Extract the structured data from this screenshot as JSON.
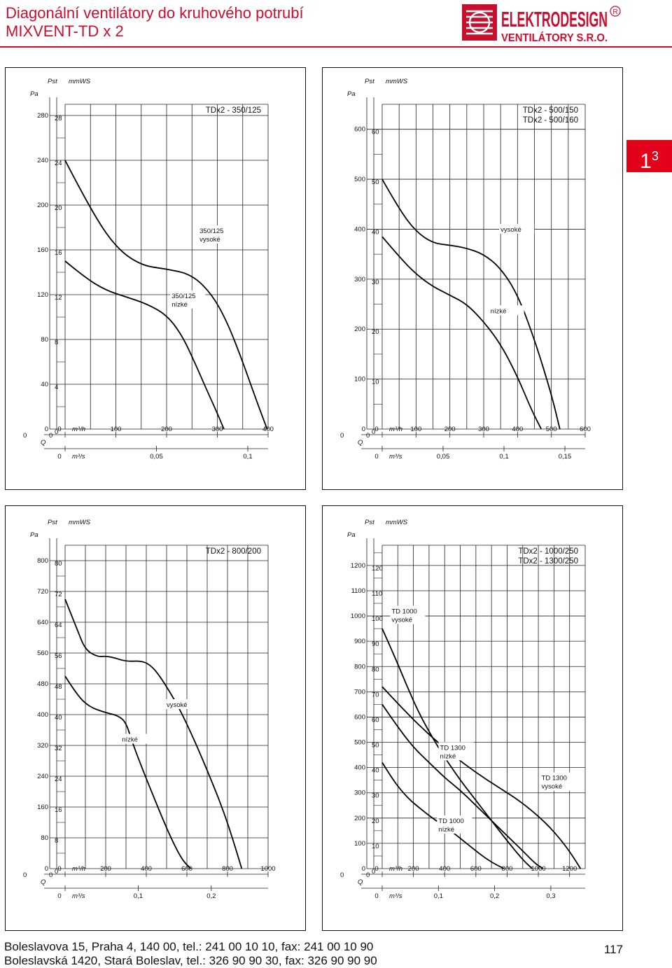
{
  "header": {
    "title_line1": "Diagonální ventilátory do kruhového potrubí",
    "title_line2": "MIXVENT-TD x 2",
    "logo_main": "ELEKTRODESIGN",
    "logo_sub": "VENTILÁTORY S.R.O.",
    "logo_mark": "R"
  },
  "tab": {
    "base": "1",
    "sup": "3"
  },
  "footer": {
    "line1": "Boleslavova 15, Praha 4, 140 00, tel.: 241 00 10 10, fax: 241 00 10 90",
    "line2": "Boleslavská 1420, Stará Boleslav, tel.: 326 90 90 30, fax: 326 90 90 90",
    "page_number": "117"
  },
  "chart_data": [
    {
      "type": "line",
      "title": "TDx2 - 350/125",
      "ylabel_main": "Pst",
      "ylabel_pa": "Pa",
      "ylabel_mmws": "mmWS",
      "xlabel_q": "Q",
      "xunit_h": "m³/h",
      "xunit_s": "m³/s",
      "x_ticks_h": [
        0,
        100,
        200,
        300,
        400
      ],
      "x_ticks_s": [
        "0",
        "0,05",
        "0,1"
      ],
      "x_ticks_s_vals": [
        0,
        0.05,
        0.1
      ],
      "xlim": [
        0,
        400
      ],
      "y_ticks_pa": [
        0,
        40,
        80,
        120,
        160,
        200,
        240,
        280
      ],
      "ylim": [
        0,
        290
      ],
      "series": [
        {
          "name": "350/125 vysoké",
          "x": [
            0,
            50,
            100,
            150,
            200,
            250,
            290,
            320,
            350,
            375,
            398
          ],
          "y": [
            240,
            196,
            162,
            146,
            143,
            138,
            120,
            95,
            60,
            28,
            0
          ]
        },
        {
          "name": "350/125 nízké",
          "x": [
            0,
            40,
            80,
            120,
            160,
            200,
            230,
            255,
            280,
            300,
            313
          ],
          "y": [
            150,
            135,
            124,
            118,
            112,
            102,
            84,
            60,
            34,
            14,
            0
          ]
        }
      ]
    },
    {
      "type": "line",
      "title": "TDx2 - 500/150\nTDx2 - 500/160",
      "ylabel_main": "Pst",
      "ylabel_pa": "Pa",
      "ylabel_mmws": "mmWS",
      "xlabel_q": "Q",
      "xunit_h": "m³/h",
      "xunit_s": "m³/s",
      "x_ticks_h": [
        0,
        100,
        200,
        300,
        400,
        500,
        600
      ],
      "x_ticks_s": [
        "0",
        "0,05",
        "0,1",
        "0,15"
      ],
      "x_ticks_s_vals": [
        0,
        0.05,
        0.1,
        0.15
      ],
      "xlim": [
        0,
        600
      ],
      "y_ticks_pa": [
        0,
        100,
        200,
        300,
        400,
        500,
        600
      ],
      "ylim": [
        0,
        650
      ],
      "series": [
        {
          "name": "vysoké",
          "x": [
            0,
            50,
            100,
            150,
            200,
            250,
            300,
            350,
            400,
            450,
            500,
            525
          ],
          "y": [
            500,
            440,
            395,
            372,
            368,
            362,
            350,
            322,
            270,
            180,
            70,
            0
          ]
        },
        {
          "name": "nízké",
          "x": [
            0,
            50,
            100,
            150,
            200,
            250,
            300,
            350,
            400,
            440,
            470
          ],
          "y": [
            385,
            345,
            310,
            285,
            268,
            250,
            215,
            170,
            105,
            40,
            0
          ]
        }
      ]
    },
    {
      "type": "line",
      "title": "TDx2 - 800/200",
      "ylabel_main": "Pst",
      "ylabel_pa": "Pa",
      "ylabel_mmws": "mmWS",
      "xlabel_q": "Q",
      "xunit_h": "m³/h",
      "xunit_s": "m³/s",
      "x_ticks_h": [
        0,
        200,
        400,
        600,
        800,
        1000
      ],
      "x_ticks_s": [
        "0",
        "0,1",
        "0,2"
      ],
      "x_ticks_s_vals": [
        0,
        0.1,
        0.2
      ],
      "xlim": [
        0,
        1000
      ],
      "y_ticks_pa": [
        0,
        80,
        160,
        240,
        320,
        400,
        480,
        560,
        640,
        720,
        800
      ],
      "ylim": [
        0,
        840
      ],
      "series": [
        {
          "name": "vysoké",
          "x": [
            0,
            60,
            100,
            160,
            200,
            240,
            300,
            380,
            430,
            480,
            560,
            640,
            720,
            780,
            830,
            870
          ],
          "y": [
            700,
            620,
            568,
            550,
            552,
            548,
            538,
            540,
            525,
            490,
            420,
            330,
            230,
            150,
            70,
            0
          ]
        },
        {
          "name": "nízké",
          "x": [
            0,
            60,
            120,
            200,
            260,
            300,
            330,
            380,
            430,
            480,
            530,
            580,
            620
          ],
          "y": [
            500,
            450,
            420,
            405,
            398,
            380,
            330,
            260,
            195,
            130,
            70,
            20,
            0
          ]
        }
      ]
    },
    {
      "type": "line",
      "title": "TDx2 - 1000/250\nTDx2 - 1300/250",
      "ylabel_main": "Pst",
      "ylabel_pa": "Pa",
      "ylabel_mmws": "mmWS",
      "xlabel_q": "Q",
      "xunit_h": "m³/h",
      "xunit_s": "m³/s",
      "x_ticks_h": [
        0,
        200,
        400,
        600,
        800,
        1000,
        1200
      ],
      "x_ticks_s": [
        "0",
        "0,1",
        "0,2",
        "0,3"
      ],
      "x_ticks_s_vals": [
        0,
        0.1,
        0.2,
        0.3
      ],
      "xlim": [
        0,
        1300
      ],
      "y_ticks_pa": [
        0,
        100,
        200,
        300,
        400,
        500,
        600,
        700,
        800,
        900,
        1000,
        1100,
        1200
      ],
      "ylim": [
        0,
        1280
      ],
      "series": [
        {
          "name": "TD 1000 vysoké",
          "x": [
            0,
            80,
            160,
            240,
            320,
            400,
            500,
            600,
            700,
            800,
            900,
            960
          ],
          "y": [
            950,
            840,
            720,
            610,
            520,
            440,
            350,
            270,
            190,
            110,
            35,
            0
          ]
        },
        {
          "name": "TD 1300 vysoké",
          "x": [
            0,
            150,
            300,
            450,
            600,
            750,
            900,
            1050,
            1150,
            1220,
            1270
          ],
          "y": [
            720,
            620,
            530,
            450,
            380,
            320,
            260,
            180,
            110,
            50,
            0
          ]
        },
        {
          "name": "TD 1300 nízké",
          "x": [
            0,
            100,
            200,
            300,
            400,
            500,
            600,
            700,
            800,
            900,
            980,
            1030
          ],
          "y": [
            650,
            560,
            480,
            420,
            360,
            310,
            250,
            190,
            130,
            70,
            20,
            0
          ]
        },
        {
          "name": "TD 1000 nízké",
          "x": [
            0,
            60,
            120,
            180,
            240,
            300,
            380,
            460,
            540,
            620,
            700,
            780
          ],
          "y": [
            420,
            360,
            310,
            270,
            240,
            210,
            175,
            140,
            100,
            60,
            25,
            0
          ]
        }
      ]
    }
  ],
  "labels": {
    "c0": [
      {
        "text": "350/125",
        "text2": "vysoké",
        "x": 265,
        "y": 175
      },
      {
        "text": "350/125",
        "text2": "nízké",
        "x": 210,
        "y": 117
      }
    ],
    "c1": [
      {
        "text": "vysoké",
        "text2": "",
        "x": 350,
        "y": 395
      },
      {
        "text": "nízké",
        "text2": "",
        "x": 320,
        "y": 232
      }
    ],
    "c2": [
      {
        "text": "vysoké",
        "text2": "",
        "x": 500,
        "y": 420
      },
      {
        "text": "nízké",
        "text2": "",
        "x": 280,
        "y": 330
      }
    ],
    "c3": [
      {
        "text": "TD 1000",
        "text2": "vysoké",
        "x": 60,
        "y": 1010
      },
      {
        "text": "TD 1300",
        "text2": "nízké",
        "x": 370,
        "y": 470
      },
      {
        "text": "TD 1300",
        "text2": "vysoké",
        "x": 1020,
        "y": 350
      },
      {
        "text": "TD 1000",
        "text2": "nízké",
        "x": 360,
        "y": 180
      }
    ]
  }
}
